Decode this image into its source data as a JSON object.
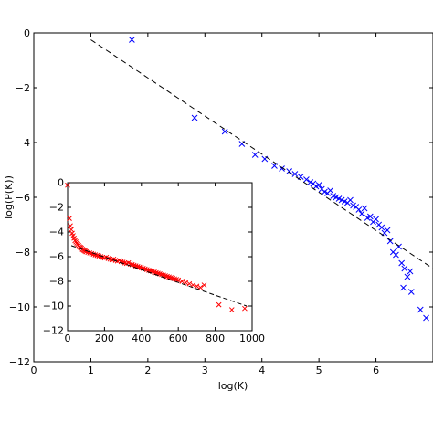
{
  "chart_data": [
    {
      "type": "scatter",
      "xlabel": "log(K)",
      "ylabel": "log(P(K))",
      "xlim": [
        0,
        7
      ],
      "ylim": [
        -12,
        0
      ],
      "xticks": [
        "0",
        "1",
        "2",
        "3",
        "4",
        "5",
        "6"
      ],
      "yticks": [
        "0",
        "−2",
        "−4",
        "−6",
        "−8",
        "−10",
        "−12"
      ],
      "grid": false,
      "series": [
        {
          "marker": "x",
          "color": "#0000ff",
          "x": [
            1.72,
            2.82,
            3.35,
            3.65,
            3.88,
            4.05,
            4.22,
            4.35,
            4.48,
            4.58,
            4.68,
            4.78,
            4.85,
            4.9,
            4.95,
            5.0,
            5.05,
            5.1,
            5.15,
            5.2,
            5.25,
            5.3,
            5.35,
            5.4,
            5.45,
            5.5,
            5.55,
            5.6,
            5.65,
            5.7,
            5.75,
            5.8,
            5.85,
            5.9,
            5.95,
            6.0,
            6.05,
            6.1,
            6.15,
            6.2,
            6.25,
            6.3,
            6.35,
            6.4,
            6.45,
            6.5,
            6.55,
            6.6,
            6.48,
            6.62,
            6.78,
            6.88
          ],
          "y": [
            -0.25,
            -3.1,
            -3.6,
            -4.05,
            -4.45,
            -4.6,
            -4.85,
            -4.95,
            -5.05,
            -5.15,
            -5.25,
            -5.35,
            -5.45,
            -5.5,
            -5.6,
            -5.55,
            -5.7,
            -5.8,
            -5.85,
            -5.75,
            -5.95,
            -6.0,
            -6.05,
            -6.1,
            -6.15,
            -6.2,
            -6.1,
            -6.3,
            -6.35,
            -6.45,
            -6.6,
            -6.4,
            -6.75,
            -6.7,
            -6.9,
            -6.8,
            -7.0,
            -7.1,
            -7.3,
            -7.2,
            -7.6,
            -8.0,
            -8.1,
            -7.8,
            -8.4,
            -8.6,
            -8.9,
            -8.7,
            -9.3,
            -9.45,
            -10.1,
            -10.4
          ]
        },
        {
          "type": "line",
          "style": "dashed",
          "color": "#000000",
          "x": [
            1.0,
            7.0
          ],
          "y": [
            -0.25,
            -8.6
          ]
        }
      ]
    },
    {
      "type": "scatter",
      "xlabel": "",
      "ylabel": "",
      "xlim": [
        0,
        1000
      ],
      "ylim": [
        -12,
        0
      ],
      "xticks": [
        "0",
        "200",
        "400",
        "600",
        "800",
        "1000"
      ],
      "yticks": [
        "0",
        "−2",
        "−4",
        "−6",
        "−8",
        "−10",
        "−12"
      ],
      "grid": false,
      "series": [
        {
          "marker": "x",
          "color": "#ff0000",
          "x": [
            0,
            10,
            15,
            20,
            25,
            30,
            35,
            40,
            45,
            50,
            55,
            60,
            65,
            70,
            75,
            80,
            85,
            90,
            95,
            100,
            110,
            120,
            130,
            140,
            150,
            160,
            170,
            180,
            190,
            200,
            210,
            220,
            230,
            240,
            250,
            260,
            270,
            280,
            290,
            300,
            310,
            320,
            330,
            340,
            350,
            360,
            370,
            380,
            390,
            400,
            410,
            420,
            430,
            440,
            450,
            460,
            470,
            480,
            490,
            500,
            510,
            520,
            530,
            540,
            550,
            560,
            570,
            580,
            590,
            600,
            620,
            640,
            660,
            680,
            700,
            720,
            740,
            820,
            890,
            960
          ],
          "y": [
            -0.2,
            -2.9,
            -3.5,
            -3.8,
            -4.1,
            -4.3,
            -4.5,
            -4.7,
            -4.8,
            -4.9,
            -5.0,
            -5.1,
            -5.2,
            -5.25,
            -5.3,
            -5.4,
            -5.45,
            -5.5,
            -5.55,
            -5.6,
            -5.65,
            -5.7,
            -5.75,
            -5.8,
            -5.85,
            -5.9,
            -5.95,
            -6.0,
            -6.05,
            -6.1,
            -6.05,
            -6.15,
            -6.2,
            -6.25,
            -6.2,
            -6.3,
            -6.35,
            -6.3,
            -6.4,
            -6.45,
            -6.5,
            -6.55,
            -6.5,
            -6.6,
            -6.65,
            -6.7,
            -6.75,
            -6.8,
            -6.85,
            -6.9,
            -6.95,
            -7.0,
            -7.05,
            -7.1,
            -7.15,
            -7.2,
            -7.25,
            -7.3,
            -7.35,
            -7.4,
            -7.45,
            -7.5,
            -7.55,
            -7.6,
            -7.65,
            -7.7,
            -7.75,
            -7.8,
            -7.85,
            -7.9,
            -8.0,
            -8.1,
            -8.2,
            -8.3,
            -8.4,
            -8.5,
            -8.3,
            -9.9,
            -10.3,
            -10.2
          ]
        },
        {
          "type": "line",
          "style": "dashed",
          "color": "#000000",
          "x": [
            20,
            970
          ],
          "y": [
            -5.1,
            -10.0
          ]
        }
      ]
    }
  ]
}
